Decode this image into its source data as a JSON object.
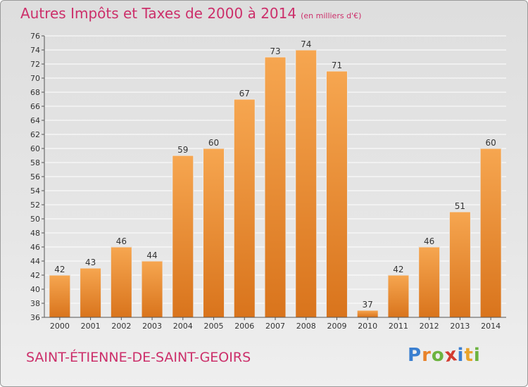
{
  "header": {
    "title": "Autres Impôts et Taxes de 2000 à 2014",
    "unit": "(en milliers d'€)"
  },
  "footer": {
    "town": "SAINT-ÉTIENNE-DE-SAINT-GEOIRS",
    "brand": "Proxiti",
    "brand_letters": [
      "P",
      "r",
      "o",
      "x",
      "i",
      "t",
      "i"
    ],
    "brand_colors": [
      "#3a7fd0",
      "#e8822a",
      "#6cb33f",
      "#d33b2f",
      "#3a7fd0",
      "#e8a32a",
      "#6cb33f"
    ]
  },
  "colors": {
    "bar_light": "#f6a650",
    "bar_dark": "#d9741c",
    "text": "#333333",
    "accent": "#cc2f6a"
  },
  "chart_data": {
    "type": "bar",
    "categories": [
      "2000",
      "2001",
      "2002",
      "2003",
      "2004",
      "2005",
      "2006",
      "2007",
      "2008",
      "2009",
      "2010",
      "2011",
      "2012",
      "2013",
      "2014"
    ],
    "values": [
      42,
      43,
      46,
      44,
      59,
      60,
      67,
      73,
      74,
      71,
      37,
      42,
      46,
      51,
      60
    ],
    "ylim": [
      36,
      76
    ],
    "yticks": [
      36,
      38,
      40,
      42,
      44,
      46,
      48,
      50,
      52,
      54,
      56,
      58,
      60,
      62,
      64,
      66,
      68,
      70,
      72,
      74,
      76
    ],
    "grid": true,
    "xlabel": "",
    "ylabel": ""
  }
}
